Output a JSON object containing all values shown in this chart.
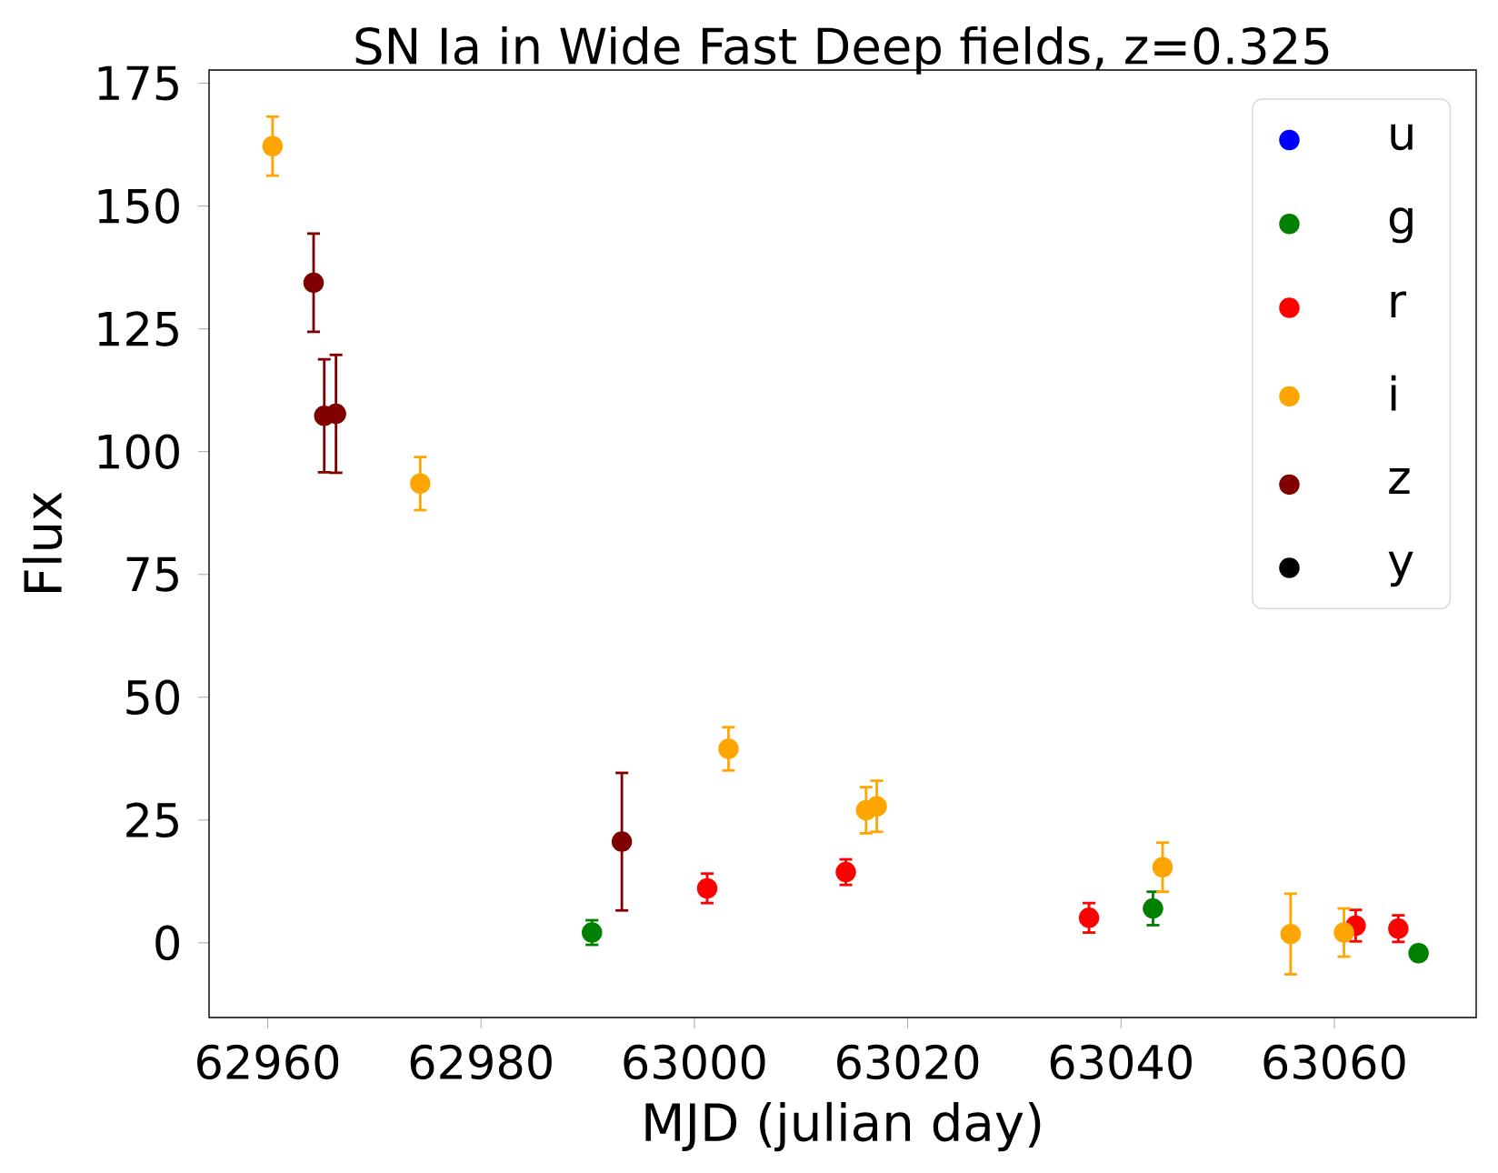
{
  "chart_data": {
    "type": "scatter",
    "title": "SN Ia in Wide Fast Deep fields, z=0.325",
    "xlabel": "MJD (julian day)",
    "ylabel": "Flux",
    "xlim": [
      62954.5,
      63073.3
    ],
    "ylim": [
      -15.2,
      177.7
    ],
    "xticks": [
      62960,
      62980,
      63000,
      63020,
      63040,
      63060
    ],
    "yticks": [
      0,
      25,
      50,
      75,
      100,
      125,
      150,
      175
    ],
    "legend": "top right",
    "marker": "circle",
    "grid": false,
    "series": [
      {
        "name": "u",
        "color": "#0000ff"
      },
      {
        "name": "g",
        "color": "#008000",
        "x": [
          62990.4,
          63043.0,
          63067.9
        ],
        "values": [
          2.1,
          7.0,
          -2.1
        ],
        "errors": [
          2.5,
          3.4,
          1
        ]
      },
      {
        "name": "r",
        "color": "#ff0000",
        "x": [
          63001.2,
          63014.2,
          63037.0,
          63062.0,
          63066.0
        ],
        "values": [
          11.1,
          14.4,
          5.1,
          3.5,
          2.9
        ],
        "errors": [
          3,
          2.6,
          3,
          3.2,
          2.7
        ]
      },
      {
        "name": "i",
        "color": "#ffa500",
        "x": [
          62960.45,
          62974.3,
          63003.2,
          63016.1,
          63017.1,
          63043.9,
          63055.9,
          63060.9
        ],
        "values": [
          162.2,
          93.5,
          39.5,
          27.0,
          27.8,
          15.4,
          1.8,
          2.1
        ],
        "errors": [
          6,
          5.4,
          4.4,
          4.7,
          5.2,
          5,
          8.2,
          4.9
        ]
      },
      {
        "name": "z",
        "color": "#800000",
        "x": [
          62964.3,
          62965.3,
          62966.4,
          62993.2
        ],
        "values": [
          134.4,
          107.3,
          107.7,
          20.6
        ],
        "errors": [
          10,
          11.5,
          12,
          14
        ]
      },
      {
        "name": "y",
        "color": "#000000"
      }
    ]
  }
}
